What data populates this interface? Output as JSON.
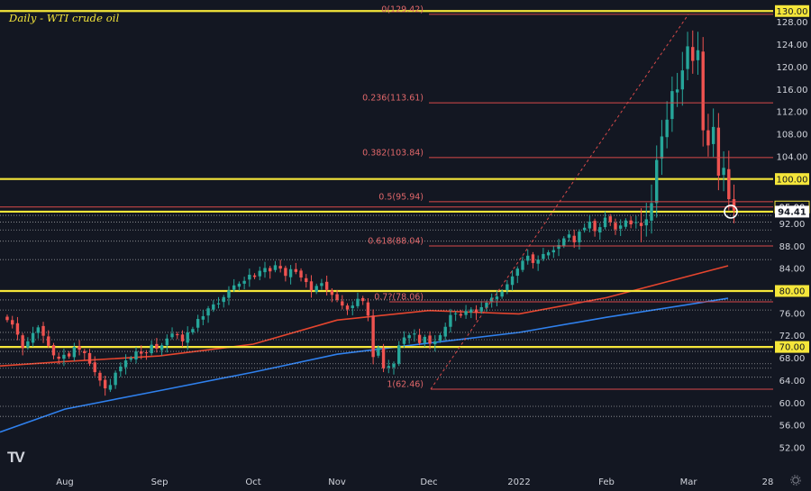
{
  "chart_data": {
    "type": "candlestick",
    "title": "Daily - WTI crude oil",
    "ylim": [
      49.5,
      130.8
    ],
    "y_ticks": [
      52,
      56,
      60,
      64,
      68,
      72,
      76,
      84,
      88,
      92,
      104,
      108,
      112,
      116,
      120,
      124,
      128
    ],
    "x_ticks": [
      "Aug",
      "Sep",
      "Oct",
      "Nov",
      "Dec",
      "2022",
      "Feb",
      "Mar",
      "28"
    ],
    "grid": false,
    "colors": {
      "background": "#131722",
      "up": "#26a69a",
      "down": "#ef5350",
      "horizontal_level": "#f5e63a",
      "fib_line": "#d94a4a",
      "ma_fast": "#e5452e",
      "ma_slow": "#2f80ed",
      "axis_text": "#d1d4dc"
    },
    "horizontal_levels": [
      {
        "value": 130.0,
        "label": "130.00"
      },
      {
        "value": 100.0,
        "label": "100.00"
      },
      {
        "value": 95.0,
        "label": "95.00"
      },
      {
        "value": 94.41,
        "label": "94.41"
      },
      {
        "value": 80.0,
        "label": "80.00"
      },
      {
        "value": 70.0,
        "label": "70.00"
      }
    ],
    "fibonacci": [
      {
        "value": 129.42,
        "label": "0(129.42)"
      },
      {
        "value": 113.61,
        "label": "0.236(113.61)"
      },
      {
        "value": 103.84,
        "label": "0.382(103.84)"
      },
      {
        "value": 95.94,
        "label": "0.5(95.94)"
      },
      {
        "value": 88.04,
        "label": "0.618(88.04)"
      },
      {
        "value": 78.06,
        "label": "0.7?(78.06)"
      },
      {
        "value": 62.46,
        "label": "1(62.46)"
      }
    ],
    "dotted_levels": [
      93.5,
      92.3,
      90.9,
      88.9,
      85.6,
      78.4,
      76.6,
      72.6,
      71.3,
      69.2,
      67.0,
      66.2,
      64.6,
      59.4,
      57.6
    ],
    "moving_averages": [
      {
        "points": [
          [
            "Jul",
            66.6
          ],
          [
            "Aug",
            67.4
          ],
          [
            "Sep",
            68.4
          ],
          [
            "Oct",
            70.5
          ],
          [
            "Nov",
            74.8
          ],
          [
            "Dec",
            76.5
          ],
          [
            "2022",
            75.9
          ],
          [
            "Feb",
            78.8
          ],
          [
            "Mar",
            84.5
          ]
        ]
      },
      {
        "points": [
          [
            "Jul",
            54.8
          ],
          [
            "Aug",
            58.9
          ],
          [
            "Sep",
            62.2
          ],
          [
            "Oct",
            65.5
          ],
          [
            "Nov",
            68.7
          ],
          [
            "Dec",
            70.7
          ],
          [
            "2022",
            72.6
          ],
          [
            "Feb",
            75.3
          ],
          [
            "Mar",
            78.7
          ]
        ]
      }
    ],
    "current_price": 94.41,
    "closes": [
      74.8,
      74.0,
      72.2,
      69.8,
      71.0,
      72.5,
      73.5,
      72.0,
      70.2,
      68.5,
      67.9,
      68.6,
      68.3,
      70.0,
      69.5,
      68.9,
      67.0,
      65.5,
      64.0,
      62.6,
      63.2,
      65.4,
      66.5,
      67.6,
      68.0,
      69.2,
      68.8,
      69.0,
      70.4,
      69.7,
      70.3,
      71.5,
      72.4,
      72.1,
      71.0,
      72.6,
      73.2,
      75.0,
      75.5,
      76.9,
      77.6,
      77.8,
      78.9,
      80.1,
      81.0,
      81.3,
      81.8,
      82.9,
      82.5,
      83.6,
      84.1,
      83.5,
      84.6,
      84.0,
      82.7,
      83.9,
      83.4,
      82.4,
      81.6,
      80.1,
      80.9,
      81.4,
      80.2,
      79.3,
      78.4,
      77.4,
      76.7,
      77.4,
      78.6,
      78.2,
      75.6,
      68.2,
      69.9,
      66.2,
      66.6,
      67.0,
      70.3,
      71.7,
      72.1,
      72.4,
      70.7,
      71.8,
      70.6,
      71.0,
      72.1,
      73.6,
      75.7,
      76.0,
      75.6,
      76.4,
      76.7,
      76.1,
      77.1,
      77.9,
      78.8,
      79.0,
      79.9,
      81.2,
      82.6,
      84.0,
      85.4,
      86.3,
      85.0,
      85.6,
      86.6,
      86.9,
      87.3,
      88.2,
      89.4,
      90.1,
      88.7,
      90.6,
      91.3,
      92.4,
      90.7,
      91.4,
      93.1,
      92.3,
      91.0,
      91.7,
      92.6,
      91.9,
      92.3,
      91.6,
      92.8,
      95.7,
      103.4,
      107.6,
      110.6,
      115.7,
      116.0,
      119.4,
      123.7,
      121.1,
      123.0,
      108.7,
      106.0,
      109.3,
      100.6,
      102.0,
      96.4,
      94.4
    ]
  }
}
